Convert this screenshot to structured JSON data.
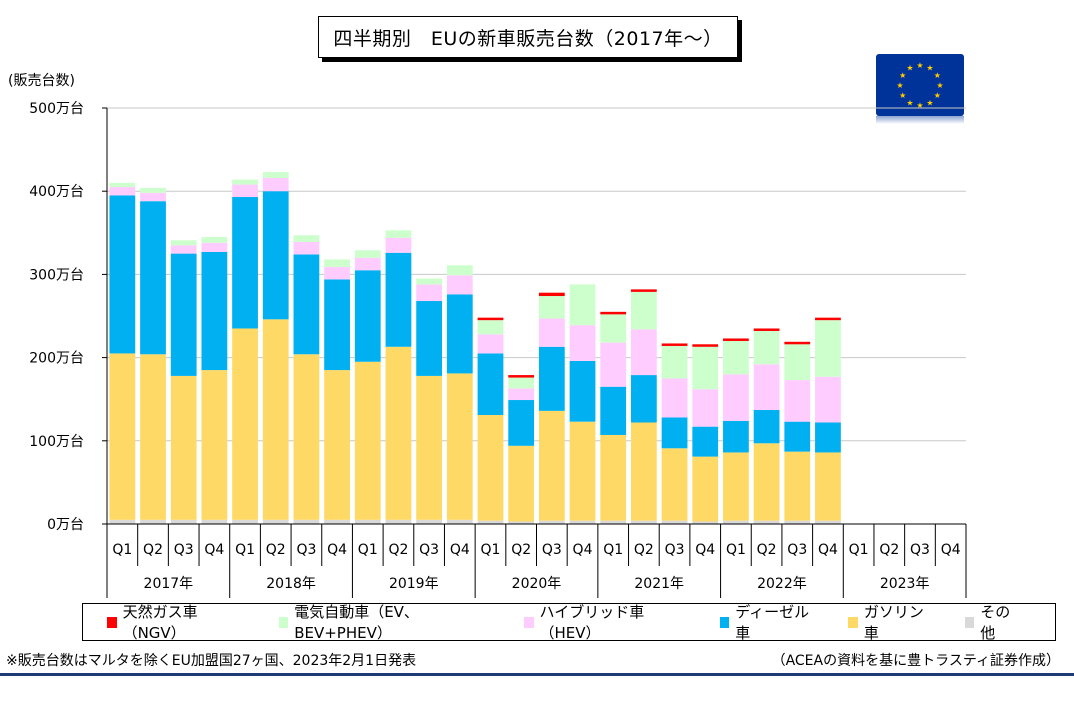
{
  "chart_data": {
    "type": "bar",
    "stacked": true,
    "title": "四半期別　EUの新車販売台数（2017年～）",
    "ylabel": "(販売台数)",
    "ylim": [
      0,
      500
    ],
    "yticks": [
      0,
      100,
      200,
      300,
      400,
      500
    ],
    "ytick_labels": [
      "0万台",
      "100万台",
      "200万台",
      "300万台",
      "400万台",
      "500万台"
    ],
    "grid": true,
    "legend_position": "bottom",
    "quarter_labels": [
      "Q1",
      "Q2",
      "Q3",
      "Q4",
      "Q1",
      "Q2",
      "Q3",
      "Q4",
      "Q1",
      "Q2",
      "Q3",
      "Q4",
      "Q1",
      "Q2",
      "Q3",
      "Q4",
      "Q1",
      "Q2",
      "Q3",
      "Q4",
      "Q1",
      "Q2",
      "Q3",
      "Q4",
      "Q1",
      "Q2",
      "Q3",
      "Q4"
    ],
    "years": [
      "2017年",
      "2018年",
      "2019年",
      "2020年",
      "2021年",
      "2022年",
      "2023年"
    ],
    "series": [
      {
        "name": "その他",
        "color": "#d9d9d9",
        "values": [
          5,
          5,
          5,
          5,
          5,
          5,
          5,
          5,
          5,
          5,
          5,
          5,
          4,
          3,
          4,
          4,
          4,
          4,
          4,
          3,
          4,
          4,
          4,
          4,
          null,
          null,
          null,
          null
        ]
      },
      {
        "name": "ガソリン車",
        "color": "#ffd966",
        "values": [
          200,
          199,
          173,
          180,
          230,
          241,
          199,
          180,
          190,
          208,
          173,
          176,
          127,
          91,
          132,
          119,
          103,
          118,
          87,
          78,
          82,
          93,
          83,
          82,
          null,
          null,
          null,
          null
        ]
      },
      {
        "name": "ディーゼル車",
        "color": "#00b0f0",
        "values": [
          190,
          184,
          147,
          142,
          158,
          154,
          120,
          109,
          110,
          113,
          90,
          95,
          74,
          55,
          77,
          73,
          58,
          57,
          37,
          36,
          38,
          40,
          36,
          36,
          null,
          null,
          null,
          null
        ]
      },
      {
        "name": "ハイブリッド車（HEV）",
        "color": "#ffccff",
        "values": [
          10,
          10,
          10,
          11,
          15,
          16,
          15,
          15,
          15,
          18,
          20,
          23,
          23,
          14,
          34,
          43,
          53,
          55,
          47,
          45,
          56,
          55,
          50,
          55,
          null,
          null,
          null,
          null
        ]
      },
      {
        "name": "電気自動車（EV、BEV+PHEV）",
        "color": "#ccffcc",
        "values": [
          5,
          6,
          6,
          7,
          6,
          7,
          8,
          9,
          9,
          9,
          7,
          12,
          17,
          13,
          27,
          49,
          35,
          45,
          40,
          52,
          41,
          41,
          44,
          68,
          null,
          null,
          null,
          null
        ]
      },
      {
        "name": "天然ガス車（NGV）",
        "color": "#ff0000",
        "values": [
          0,
          0,
          0,
          0,
          0,
          0,
          0,
          0,
          0,
          0,
          0,
          0,
          3,
          3,
          4,
          0,
          2,
          3,
          2,
          2,
          2,
          2,
          2,
          3,
          null,
          null,
          null,
          null
        ]
      }
    ]
  },
  "legend": {
    "items": [
      {
        "label": "天然ガス車（NGV）",
        "color": "#ff0000"
      },
      {
        "label": "電気自動車（EV、BEV+PHEV）",
        "color": "#ccffcc"
      },
      {
        "label": "ハイブリッド車（HEV）",
        "color": "#ffccff"
      },
      {
        "label": "ディーゼル車",
        "color": "#00b0f0"
      },
      {
        "label": "ガソリン車",
        "color": "#ffd966"
      },
      {
        "label": "その他",
        "color": "#d9d9d9"
      }
    ]
  },
  "footnote": "※販売台数はマルタを除くEU加盟国27ヶ国、2023年2月1日発表",
  "source": "（ACEAの資料を基に豊トラスティ証券作成）",
  "flag": {
    "name": "eu-flag-icon",
    "background": "#003399",
    "star_color": "#ffcc00"
  }
}
